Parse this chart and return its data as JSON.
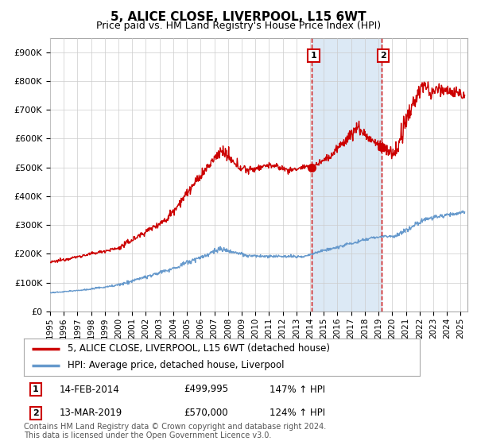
{
  "title": "5, ALICE CLOSE, LIVERPOOL, L15 6WT",
  "subtitle": "Price paid vs. HM Land Registry's House Price Index (HPI)",
  "ylim": [
    0,
    950000
  ],
  "xlim_start": 1995.0,
  "xlim_end": 2025.5,
  "line1_color": "#cc0000",
  "line2_color": "#6699cc",
  "marker_color": "#cc0000",
  "shading_color": "#dce9f5",
  "dashed_color": "#cc0000",
  "point1_x": 2014.12,
  "point1_y": 499995,
  "point1_label": "14-FEB-2014",
  "point1_price": "£499,995",
  "point1_hpi": "147% ↑ HPI",
  "point2_x": 2019.2,
  "point2_y": 570000,
  "point2_label": "13-MAR-2019",
  "point2_price": "£570,000",
  "point2_hpi": "124% ↑ HPI",
  "legend_label1": "5, ALICE CLOSE, LIVERPOOL, L15 6WT (detached house)",
  "legend_label2": "HPI: Average price, detached house, Liverpool",
  "footnote": "Contains HM Land Registry data © Crown copyright and database right 2024.\nThis data is licensed under the Open Government Licence v3.0.",
  "yticks": [
    0,
    100000,
    200000,
    300000,
    400000,
    500000,
    600000,
    700000,
    800000,
    900000
  ],
  "ytick_labels": [
    "£0",
    "£100K",
    "£200K",
    "£300K",
    "£400K",
    "£500K",
    "£600K",
    "£700K",
    "£800K",
    "£900K"
  ]
}
